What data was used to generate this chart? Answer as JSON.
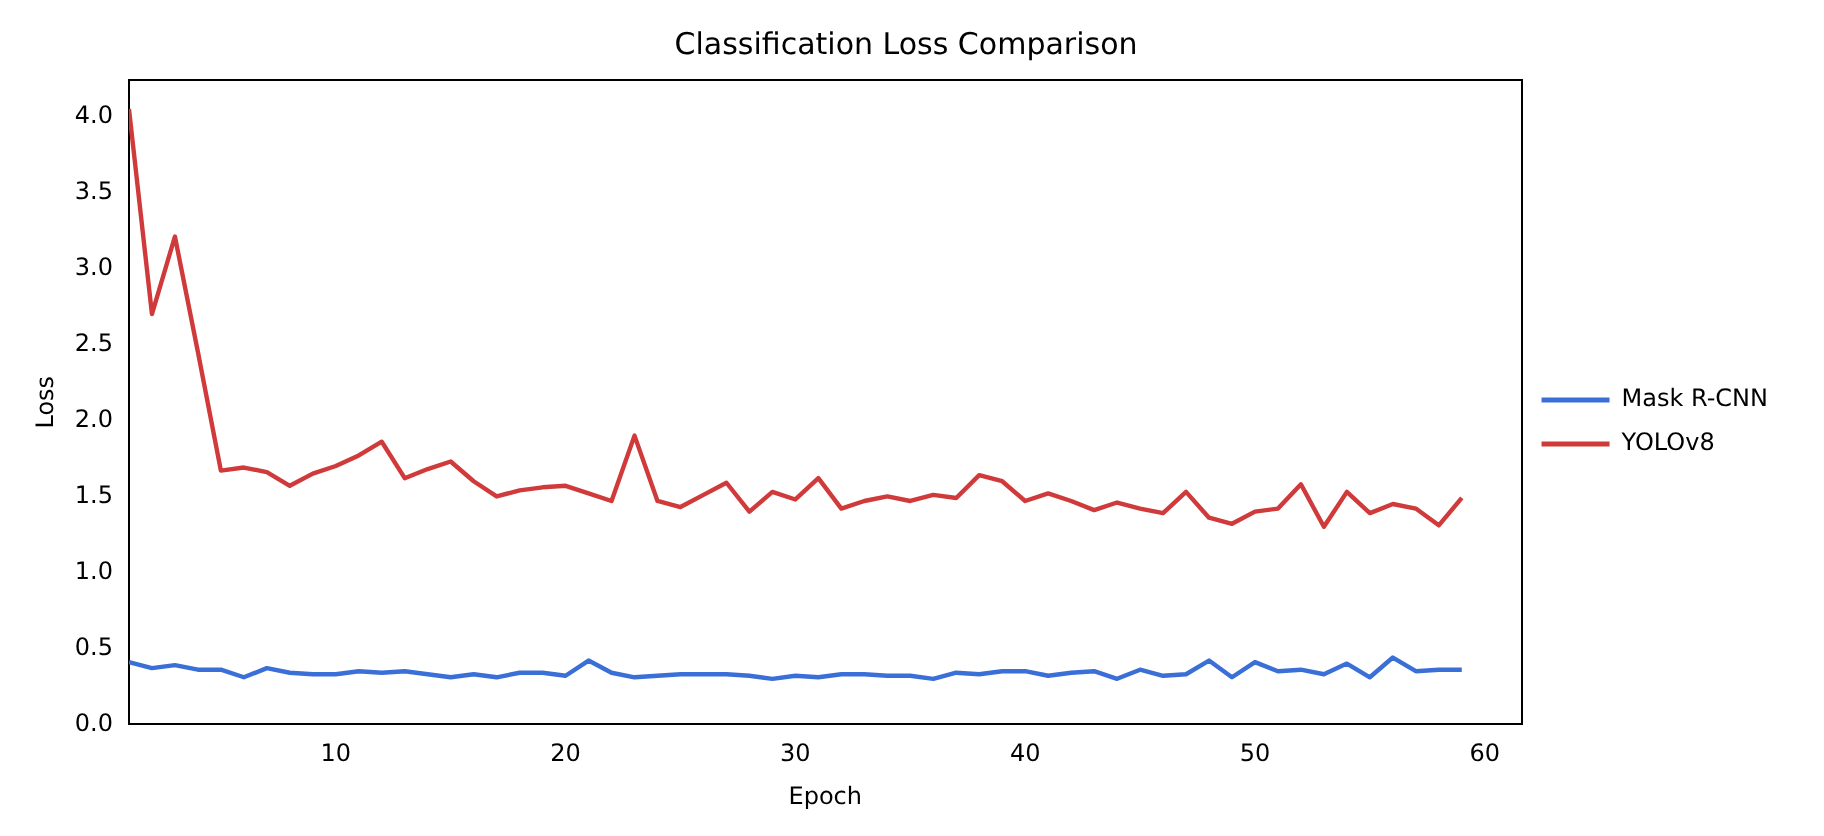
{
  "chart_data": {
    "type": "line",
    "title": "Classification Loss Comparison",
    "xlabel": "Epoch",
    "ylabel": "Loss",
    "x": [
      1,
      2,
      3,
      4,
      5,
      6,
      7,
      8,
      9,
      10,
      11,
      12,
      13,
      14,
      15,
      16,
      17,
      18,
      19,
      20,
      21,
      22,
      23,
      24,
      25,
      26,
      27,
      28,
      29,
      30,
      31,
      32,
      33,
      34,
      35,
      36,
      37,
      38,
      39,
      40,
      41,
      42,
      43,
      44,
      45,
      46,
      47,
      48,
      49,
      50,
      51,
      52,
      53,
      54,
      55,
      56,
      57,
      58,
      59
    ],
    "series": [
      {
        "name": "Mask R-CNN",
        "color": "#3a6fd8",
        "values": [
          0.41,
          0.37,
          0.39,
          0.36,
          0.36,
          0.31,
          0.37,
          0.34,
          0.33,
          0.33,
          0.35,
          0.34,
          0.35,
          0.33,
          0.31,
          0.33,
          0.31,
          0.34,
          0.34,
          0.32,
          0.42,
          0.34,
          0.31,
          0.32,
          0.33,
          0.33,
          0.33,
          0.32,
          0.3,
          0.32,
          0.31,
          0.33,
          0.33,
          0.32,
          0.32,
          0.3,
          0.34,
          0.33,
          0.35,
          0.35,
          0.32,
          0.34,
          0.35,
          0.3,
          0.36,
          0.32,
          0.33,
          0.42,
          0.31,
          0.41,
          0.35,
          0.36,
          0.33,
          0.4,
          0.31,
          0.44,
          0.35,
          0.36,
          0.36
        ]
      },
      {
        "name": "YOLOv8",
        "color": "#d03a3a",
        "values": [
          4.05,
          2.7,
          3.21,
          2.45,
          1.67,
          1.69,
          1.66,
          1.57,
          1.65,
          1.7,
          1.77,
          1.86,
          1.62,
          1.68,
          1.73,
          1.6,
          1.5,
          1.54,
          1.56,
          1.57,
          1.52,
          1.47,
          1.9,
          1.47,
          1.43,
          1.51,
          1.59,
          1.4,
          1.53,
          1.48,
          1.62,
          1.42,
          1.47,
          1.5,
          1.47,
          1.51,
          1.49,
          1.64,
          1.6,
          1.47,
          1.52,
          1.47,
          1.41,
          1.46,
          1.42,
          1.39,
          1.53,
          1.36,
          1.32,
          1.4,
          1.42,
          1.58,
          1.3,
          1.53,
          1.39,
          1.45,
          1.42,
          1.31,
          1.49
        ]
      }
    ],
    "xlim": [
      1,
      61.6
    ],
    "xticks": [
      10,
      20,
      30,
      40,
      50,
      60
    ],
    "ylim": [
      0,
      4.24
    ],
    "yticks": [
      {
        "value": 0,
        "label": "0.0"
      },
      0.5,
      {
        "value": 1,
        "label": "1.0"
      },
      1.5,
      {
        "value": 2,
        "label": "2.0"
      },
      2.5,
      {
        "value": 3,
        "label": "3.0"
      },
      3.5,
      {
        "value": 4,
        "label": "4.0"
      }
    ],
    "grid": false,
    "legend": "right",
    "marker": "none",
    "line_style": "solid"
  }
}
